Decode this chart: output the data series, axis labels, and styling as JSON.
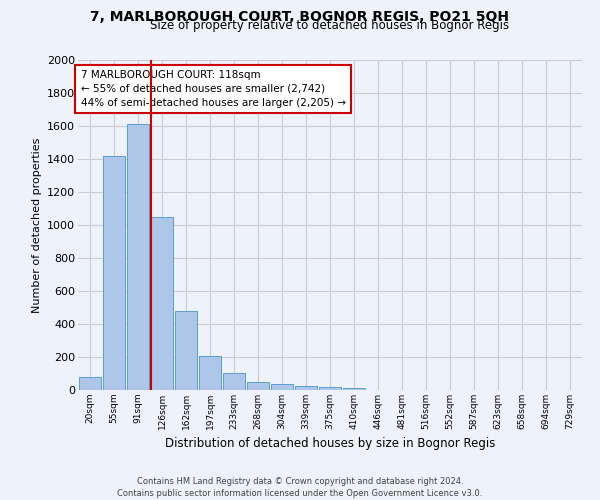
{
  "title": "7, MARLBOROUGH COURT, BOGNOR REGIS, PO21 5QH",
  "subtitle": "Size of property relative to detached houses in Bognor Regis",
  "xlabel": "Distribution of detached houses by size in Bognor Regis",
  "ylabel": "Number of detached properties",
  "bar_labels": [
    "20sqm",
    "55sqm",
    "91sqm",
    "126sqm",
    "162sqm",
    "197sqm",
    "233sqm",
    "268sqm",
    "304sqm",
    "339sqm",
    "375sqm",
    "410sqm",
    "446sqm",
    "481sqm",
    "516sqm",
    "552sqm",
    "587sqm",
    "623sqm",
    "658sqm",
    "694sqm",
    "729sqm"
  ],
  "bar_values": [
    80,
    1420,
    1610,
    1050,
    480,
    205,
    105,
    48,
    35,
    25,
    20,
    15,
    0,
    0,
    0,
    0,
    0,
    0,
    0,
    0,
    0
  ],
  "bar_color": "#aec6e8",
  "bar_edge_color": "#5a9fd4",
  "grid_color": "#cccccc",
  "vline_bar_index": 3,
  "vline_color": "#cc0000",
  "annotation_text": "7 MARLBOROUGH COURT: 118sqm\n← 55% of detached houses are smaller (2,742)\n44% of semi-detached houses are larger (2,205) →",
  "annotation_box_color": "#ffffff",
  "annotation_box_edge": "#cc0000",
  "ylim": [
    0,
    2000
  ],
  "yticks": [
    0,
    200,
    400,
    600,
    800,
    1000,
    1200,
    1400,
    1600,
    1800,
    2000
  ],
  "footer_line1": "Contains HM Land Registry data © Crown copyright and database right 2024.",
  "footer_line2": "Contains public sector information licensed under the Open Government Licence v3.0.",
  "background_color": "#eef2fb"
}
